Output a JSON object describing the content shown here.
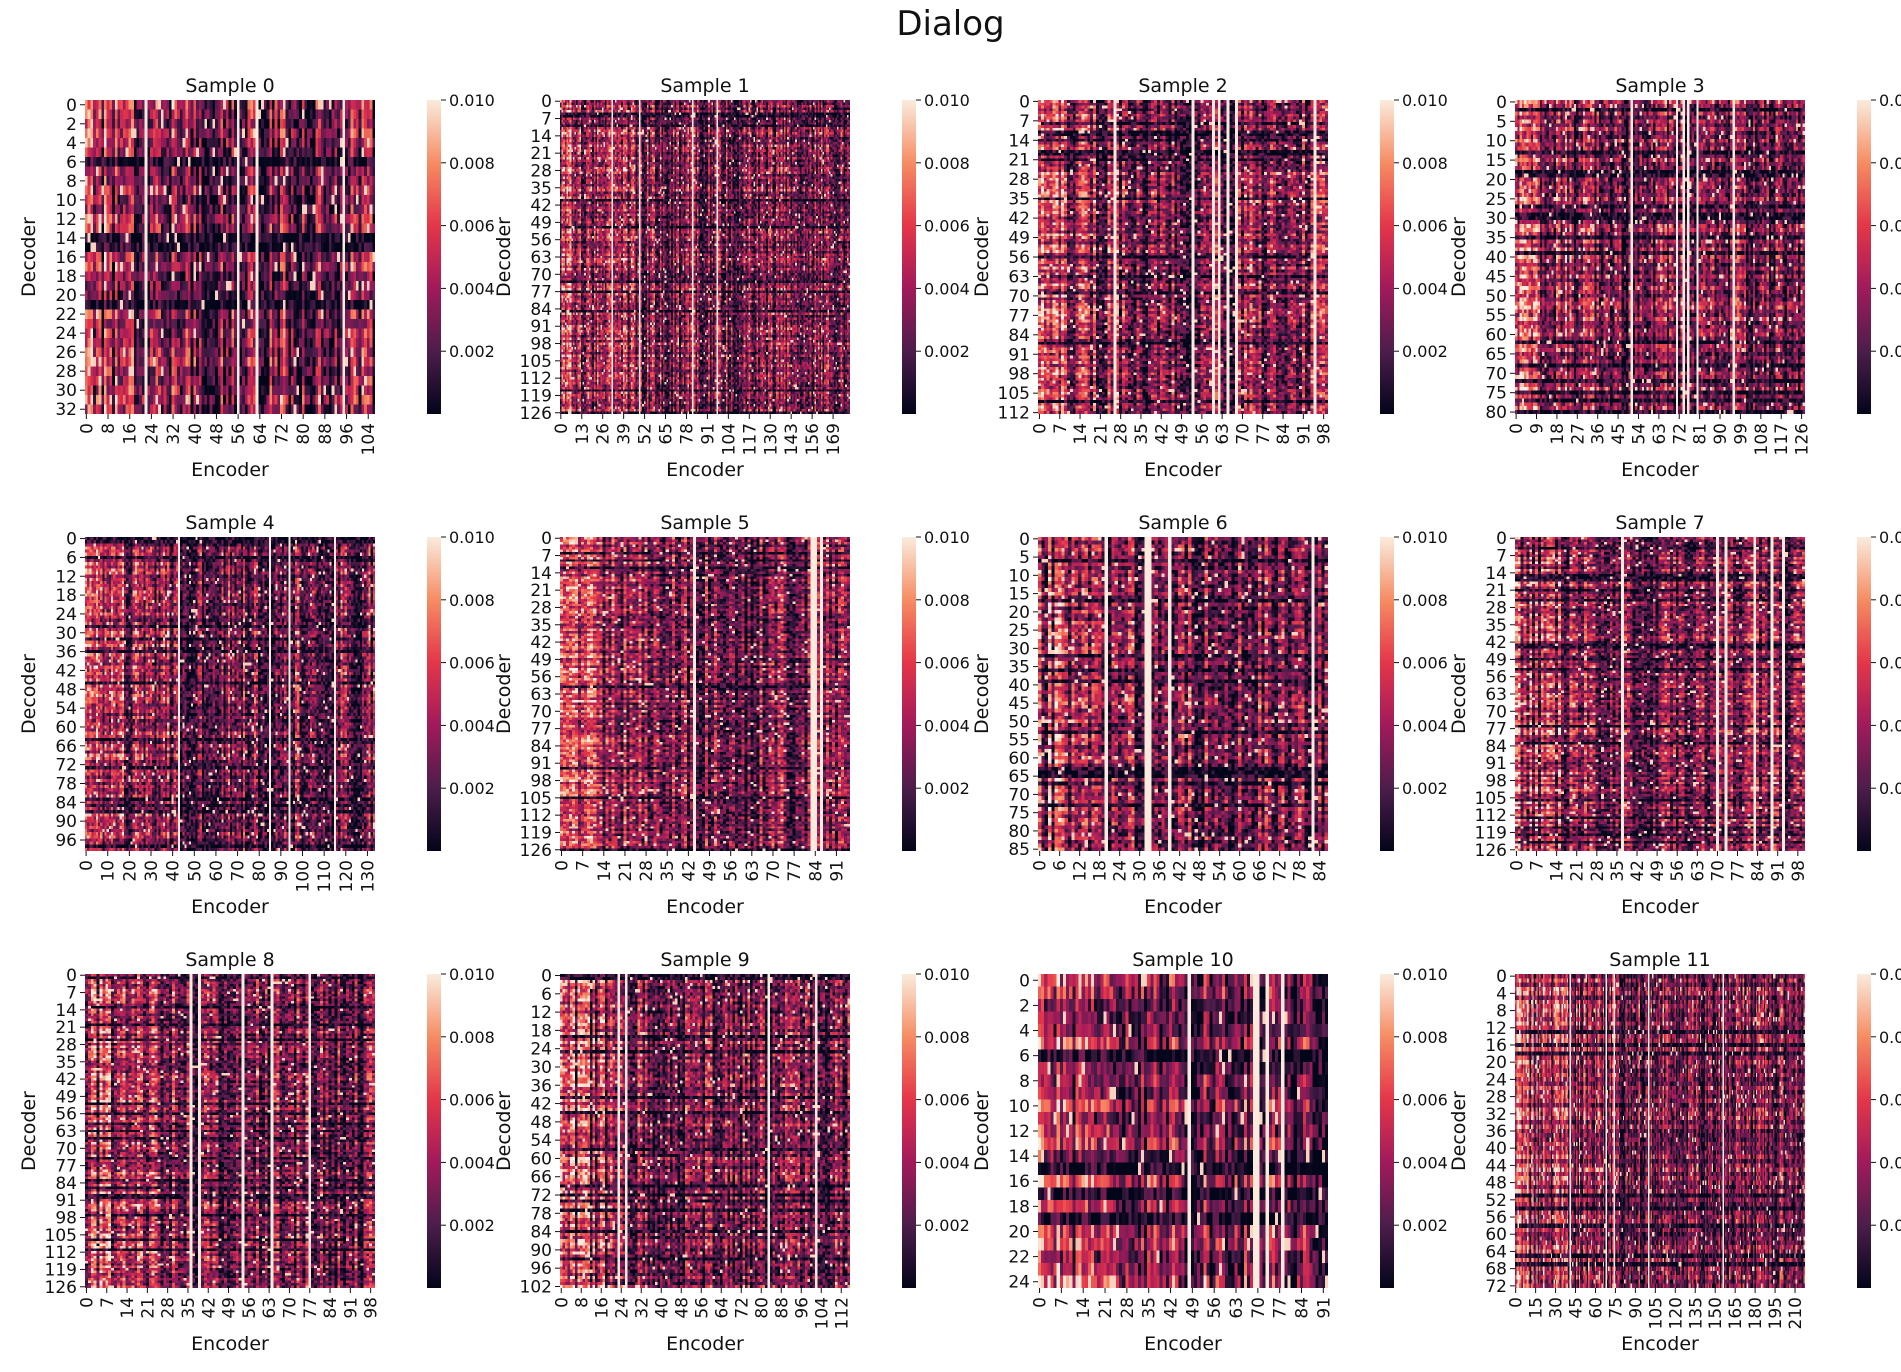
{
  "suptitle": "Dialog",
  "chart_data": {
    "type": "heatmap",
    "colormap": "rocket",
    "color_range": [
      0,
      0.01
    ],
    "colorbar_ticks": [
      "0.002",
      "0.004",
      "0.006",
      "0.008",
      "0.010"
    ],
    "xlabel": "Encoder",
    "ylabel": "Decoder",
    "panels": [
      {
        "title": "Sample 0",
        "rows": 33,
        "cols": 107,
        "yticks": [
          "0",
          "2",
          "4",
          "6",
          "8",
          "10",
          "12",
          "14",
          "16",
          "18",
          "20",
          "22",
          "24",
          "26",
          "28",
          "30",
          "32"
        ],
        "xticks": [
          "0",
          "8",
          "16",
          "24",
          "32",
          "40",
          "48",
          "56",
          "64",
          "72",
          "80",
          "88",
          "96",
          "104"
        ]
      },
      {
        "title": "Sample 1",
        "rows": 127,
        "cols": 180,
        "yticks": [
          "0",
          "7",
          "14",
          "21",
          "28",
          "35",
          "42",
          "49",
          "56",
          "63",
          "70",
          "77",
          "84",
          "91",
          "98",
          "105",
          "112",
          "119",
          "126"
        ],
        "xticks": [
          "0",
          "13",
          "26",
          "39",
          "52",
          "65",
          "78",
          "91",
          "104",
          "117",
          "130",
          "143",
          "156",
          "169"
        ]
      },
      {
        "title": "Sample 2",
        "rows": 113,
        "cols": 100,
        "yticks": [
          "0",
          "7",
          "14",
          "21",
          "28",
          "35",
          "42",
          "49",
          "56",
          "63",
          "70",
          "77",
          "84",
          "91",
          "98",
          "105",
          "112"
        ],
        "xticks": [
          "0",
          "7",
          "14",
          "21",
          "28",
          "35",
          "42",
          "49",
          "56",
          "63",
          "70",
          "77",
          "84",
          "91",
          "98"
        ]
      },
      {
        "title": "Sample 3",
        "rows": 81,
        "cols": 128,
        "yticks": [
          "0",
          "5",
          "10",
          "15",
          "20",
          "25",
          "30",
          "35",
          "40",
          "45",
          "50",
          "55",
          "60",
          "65",
          "70",
          "75",
          "80"
        ],
        "xticks": [
          "0",
          "9",
          "18",
          "27",
          "36",
          "45",
          "54",
          "63",
          "72",
          "81",
          "90",
          "99",
          "108",
          "117",
          "126"
        ]
      },
      {
        "title": "Sample 4",
        "rows": 100,
        "cols": 134,
        "yticks": [
          "0",
          "6",
          "12",
          "18",
          "24",
          "30",
          "36",
          "42",
          "48",
          "54",
          "60",
          "66",
          "72",
          "78",
          "84",
          "90",
          "96"
        ],
        "xticks": [
          "0",
          "10",
          "20",
          "30",
          "40",
          "50",
          "60",
          "70",
          "80",
          "90",
          "100",
          "110",
          "120",
          "130"
        ]
      },
      {
        "title": "Sample 5",
        "rows": 127,
        "cols": 96,
        "yticks": [
          "0",
          "7",
          "14",
          "21",
          "28",
          "35",
          "42",
          "49",
          "56",
          "63",
          "70",
          "77",
          "84",
          "91",
          "98",
          "105",
          "112",
          "119",
          "126"
        ],
        "xticks": [
          "0",
          "7",
          "14",
          "21",
          "28",
          "35",
          "42",
          "49",
          "56",
          "63",
          "70",
          "77",
          "84",
          "91"
        ]
      },
      {
        "title": "Sample 6",
        "rows": 86,
        "cols": 87,
        "yticks": [
          "0",
          "5",
          "10",
          "15",
          "20",
          "25",
          "30",
          "35",
          "40",
          "45",
          "50",
          "55",
          "60",
          "65",
          "70",
          "75",
          "80",
          "85"
        ],
        "xticks": [
          "0",
          "6",
          "12",
          "18",
          "24",
          "30",
          "36",
          "42",
          "48",
          "54",
          "60",
          "66",
          "72",
          "78",
          "84"
        ]
      },
      {
        "title": "Sample 7",
        "rows": 127,
        "cols": 101,
        "yticks": [
          "0",
          "7",
          "14",
          "21",
          "28",
          "35",
          "42",
          "49",
          "56",
          "63",
          "70",
          "77",
          "84",
          "91",
          "98",
          "105",
          "112",
          "119",
          "126"
        ],
        "xticks": [
          "0",
          "7",
          "14",
          "21",
          "28",
          "35",
          "42",
          "49",
          "56",
          "63",
          "70",
          "77",
          "84",
          "91",
          "98"
        ]
      },
      {
        "title": "Sample 8",
        "rows": 127,
        "cols": 100,
        "yticks": [
          "0",
          "7",
          "14",
          "21",
          "28",
          "35",
          "42",
          "49",
          "56",
          "63",
          "70",
          "77",
          "84",
          "91",
          "98",
          "105",
          "112",
          "119",
          "126"
        ],
        "xticks": [
          "0",
          "7",
          "14",
          "21",
          "28",
          "35",
          "42",
          "49",
          "56",
          "63",
          "70",
          "77",
          "84",
          "91",
          "98"
        ]
      },
      {
        "title": "Sample 9",
        "rows": 103,
        "cols": 116,
        "yticks": [
          "0",
          "6",
          "12",
          "18",
          "24",
          "30",
          "36",
          "42",
          "48",
          "54",
          "60",
          "66",
          "72",
          "78",
          "84",
          "90",
          "96",
          "102"
        ],
        "xticks": [
          "0",
          "8",
          "16",
          "24",
          "32",
          "40",
          "48",
          "56",
          "64",
          "72",
          "80",
          "88",
          "96",
          "104",
          "112"
        ]
      },
      {
        "title": "Sample 10",
        "rows": 25,
        "cols": 93,
        "yticks": [
          "0",
          "2",
          "4",
          "6",
          "8",
          "10",
          "12",
          "14",
          "16",
          "18",
          "20",
          "22",
          "24"
        ],
        "xticks": [
          "0",
          "7",
          "14",
          "21",
          "28",
          "35",
          "42",
          "49",
          "56",
          "63",
          "70",
          "77",
          "84",
          "91"
        ]
      },
      {
        "title": "Sample 11",
        "rows": 73,
        "cols": 218,
        "yticks": [
          "0",
          "4",
          "8",
          "12",
          "16",
          "20",
          "24",
          "28",
          "32",
          "36",
          "40",
          "44",
          "48",
          "52",
          "56",
          "60",
          "64",
          "68",
          "72"
        ],
        "xticks": [
          "0",
          "15",
          "30",
          "45",
          "60",
          "75",
          "90",
          "105",
          "120",
          "135",
          "150",
          "165",
          "180",
          "195",
          "210"
        ]
      }
    ]
  }
}
